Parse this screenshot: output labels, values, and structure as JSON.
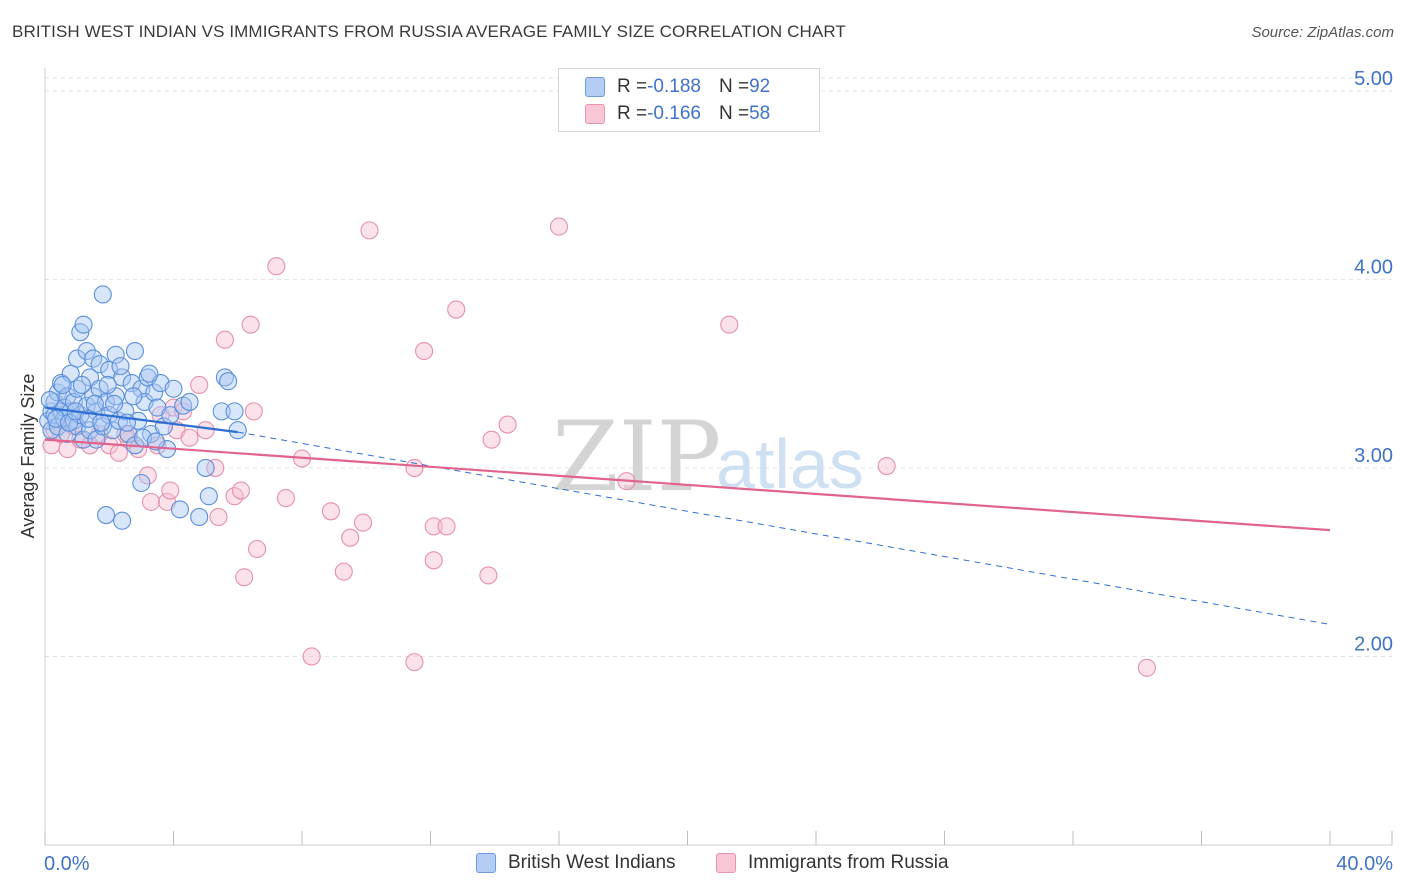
{
  "title": "BRITISH WEST INDIAN VS IMMIGRANTS FROM RUSSIA AVERAGE FAMILY SIZE CORRELATION CHART",
  "source": "Source: ZipAtlas.com",
  "watermark": {
    "zip": "ZIP",
    "atlas": "atlas"
  },
  "legend": {
    "r_label": "R = ",
    "n_label": "N = ",
    "rows": [
      {
        "r": "-0.188",
        "n": "92"
      },
      {
        "r": "-0.166",
        "n": "58"
      }
    ]
  },
  "colors": {
    "blue_fill": "#a9c7f2",
    "blue_stroke": "#5c8fdc",
    "blue_line": "#2f6fd1",
    "pink_fill": "#f7bfd0",
    "pink_stroke": "#e690ab",
    "pink_line": "#e0648e",
    "accent_text": "#3f73c9",
    "grid": "#e2e2e2"
  },
  "chart_data": {
    "type": "scatter",
    "title": "BRITISH WEST INDIAN VS IMMIGRANTS FROM RUSSIA AVERAGE FAMILY SIZE CORRELATION CHART",
    "xlabel": "",
    "ylabel": "Average Family Size",
    "xlim": [
      0,
      40
    ],
    "ylim": [
      1.0,
      5.1
    ],
    "x_tick_labels": [
      "0.0%",
      "40.0%"
    ],
    "y_ticks": [
      {
        "value": 2.0,
        "label": "2.00"
      },
      {
        "value": 3.0,
        "label": "3.00"
      },
      {
        "value": 4.0,
        "label": "4.00"
      },
      {
        "value": 5.0,
        "label": "5.00"
      }
    ],
    "series": [
      {
        "name": "British West Indians",
        "color": "blue",
        "trend": {
          "x": [
            0,
            6.0
          ],
          "y": [
            3.32,
            3.19
          ],
          "dashed_to": [
            40,
            2.17
          ]
        },
        "points": [
          [
            0.1,
            3.25
          ],
          [
            0.2,
            3.3
          ],
          [
            0.2,
            3.2
          ],
          [
            0.3,
            3.28
          ],
          [
            0.3,
            3.35
          ],
          [
            0.4,
            3.22
          ],
          [
            0.4,
            3.4
          ],
          [
            0.5,
            3.3
          ],
          [
            0.5,
            3.45
          ],
          [
            0.6,
            3.26
          ],
          [
            0.6,
            3.32
          ],
          [
            0.7,
            3.38
          ],
          [
            0.7,
            3.18
          ],
          [
            0.8,
            3.3
          ],
          [
            0.8,
            3.5
          ],
          [
            0.9,
            3.25
          ],
          [
            0.9,
            3.35
          ],
          [
            1.0,
            3.22
          ],
          [
            1.0,
            3.42
          ],
          [
            1.0,
            3.58
          ],
          [
            1.1,
            3.72
          ],
          [
            1.1,
            3.28
          ],
          [
            1.2,
            3.76
          ],
          [
            1.2,
            3.15
          ],
          [
            1.3,
            3.33
          ],
          [
            1.3,
            3.62
          ],
          [
            1.4,
            3.48
          ],
          [
            1.4,
            3.2
          ],
          [
            1.5,
            3.38
          ],
          [
            1.5,
            3.58
          ],
          [
            1.6,
            3.3
          ],
          [
            1.6,
            3.15
          ],
          [
            1.7,
            3.42
          ],
          [
            1.7,
            3.55
          ],
          [
            1.8,
            3.22
          ],
          [
            1.8,
            3.92
          ],
          [
            1.9,
            3.35
          ],
          [
            1.9,
            2.75
          ],
          [
            2.0,
            3.28
          ],
          [
            2.0,
            3.52
          ],
          [
            2.1,
            3.2
          ],
          [
            2.2,
            3.38
          ],
          [
            2.2,
            3.6
          ],
          [
            2.3,
            3.25
          ],
          [
            2.4,
            2.72
          ],
          [
            2.4,
            3.48
          ],
          [
            2.5,
            3.3
          ],
          [
            2.6,
            3.18
          ],
          [
            2.7,
            3.45
          ],
          [
            2.8,
            3.12
          ],
          [
            2.8,
            3.62
          ],
          [
            2.9,
            3.25
          ],
          [
            3.0,
            3.42
          ],
          [
            3.0,
            2.92
          ],
          [
            3.1,
            3.35
          ],
          [
            3.2,
            3.48
          ],
          [
            3.3,
            3.18
          ],
          [
            3.4,
            3.4
          ],
          [
            3.5,
            3.32
          ],
          [
            3.6,
            3.45
          ],
          [
            3.7,
            3.22
          ],
          [
            3.8,
            3.1
          ],
          [
            3.9,
            3.28
          ],
          [
            4.0,
            3.42
          ],
          [
            4.2,
            2.78
          ],
          [
            4.3,
            3.33
          ],
          [
            4.5,
            3.35
          ],
          [
            4.8,
            2.74
          ],
          [
            5.0,
            3.0
          ],
          [
            5.1,
            2.85
          ],
          [
            5.5,
            3.3
          ],
          [
            5.6,
            3.48
          ],
          [
            5.7,
            3.46
          ],
          [
            5.9,
            3.3
          ],
          [
            6.0,
            3.2
          ],
          [
            0.15,
            3.36
          ],
          [
            0.35,
            3.26
          ],
          [
            0.55,
            3.44
          ],
          [
            0.75,
            3.24
          ],
          [
            0.95,
            3.3
          ],
          [
            1.15,
            3.44
          ],
          [
            1.35,
            3.26
          ],
          [
            1.55,
            3.34
          ],
          [
            1.75,
            3.24
          ],
          [
            1.95,
            3.44
          ],
          [
            2.15,
            3.34
          ],
          [
            2.35,
            3.54
          ],
          [
            2.55,
            3.24
          ],
          [
            2.75,
            3.38
          ],
          [
            3.05,
            3.16
          ],
          [
            3.25,
            3.5
          ],
          [
            3.45,
            3.14
          ]
        ]
      },
      {
        "name": "Immigrants from Russia",
        "color": "pink",
        "trend": {
          "x": [
            0,
            40
          ],
          "y": [
            3.15,
            2.67
          ]
        },
        "points": [
          [
            0.2,
            3.12
          ],
          [
            0.3,
            3.2
          ],
          [
            0.5,
            3.18
          ],
          [
            0.7,
            3.1
          ],
          [
            0.9,
            3.22
          ],
          [
            1.1,
            3.15
          ],
          [
            1.4,
            3.12
          ],
          [
            1.7,
            3.18
          ],
          [
            2.0,
            3.12
          ],
          [
            2.3,
            3.08
          ],
          [
            2.6,
            3.15
          ],
          [
            2.9,
            3.1
          ],
          [
            3.2,
            2.96
          ],
          [
            3.3,
            2.82
          ],
          [
            3.5,
            3.12
          ],
          [
            3.6,
            3.28
          ],
          [
            3.8,
            2.82
          ],
          [
            3.9,
            2.88
          ],
          [
            4.0,
            3.32
          ],
          [
            4.1,
            3.2
          ],
          [
            4.3,
            3.3
          ],
          [
            4.5,
            3.16
          ],
          [
            4.8,
            3.44
          ],
          [
            5.0,
            3.2
          ],
          [
            5.3,
            3.0
          ],
          [
            5.4,
            2.74
          ],
          [
            5.6,
            3.68
          ],
          [
            5.9,
            2.85
          ],
          [
            6.1,
            2.88
          ],
          [
            6.2,
            2.42
          ],
          [
            6.4,
            3.76
          ],
          [
            6.5,
            3.3
          ],
          [
            6.6,
            2.57
          ],
          [
            7.2,
            4.07
          ],
          [
            7.5,
            2.84
          ],
          [
            8.0,
            3.05
          ],
          [
            8.3,
            2.0
          ],
          [
            8.9,
            2.77
          ],
          [
            9.3,
            2.45
          ],
          [
            9.5,
            2.63
          ],
          [
            9.9,
            2.71
          ],
          [
            10.1,
            4.26
          ],
          [
            11.5,
            3.0
          ],
          [
            11.5,
            1.97
          ],
          [
            11.8,
            3.62
          ],
          [
            12.1,
            2.69
          ],
          [
            12.1,
            2.51
          ],
          [
            12.5,
            2.69
          ],
          [
            12.8,
            3.84
          ],
          [
            13.9,
            3.15
          ],
          [
            13.8,
            2.43
          ],
          [
            14.4,
            3.23
          ],
          [
            16.0,
            4.28
          ],
          [
            18.1,
            2.93
          ],
          [
            21.3,
            3.76
          ],
          [
            26.2,
            3.01
          ],
          [
            34.3,
            1.94
          ],
          [
            2.5,
            3.18
          ]
        ]
      }
    ]
  },
  "bottom_legend": [
    "British West Indians",
    "Immigrants from Russia"
  ]
}
